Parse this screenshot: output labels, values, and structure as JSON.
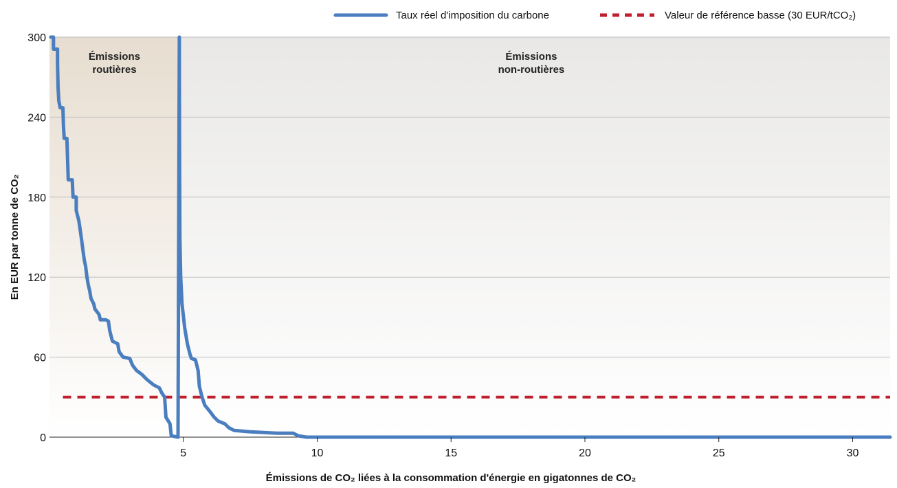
{
  "chart_data": {
    "type": "line",
    "xlabel": "Émissions de CO₂ liées à la consommation d'énergie en gigatonnes de CO₂",
    "ylabel": "En EUR par tonne de CO₂",
    "xlim": [
      0,
      31.4
    ],
    "ylim": [
      0,
      300
    ],
    "x_ticks": [
      5,
      10,
      15,
      20,
      25,
      30
    ],
    "y_ticks": [
      0,
      60,
      120,
      180,
      240,
      300
    ],
    "grid": "horizontal",
    "legend_position": "top-right",
    "regions": [
      {
        "label_line1": "Émissions",
        "label_line2": "routières",
        "x_start": 0,
        "x_end": 4.85
      },
      {
        "label_line1": "Émissions",
        "label_line2": "non-routières",
        "x_start": 4.85,
        "x_end": 31.4
      }
    ],
    "series": [
      {
        "name": "Taux réel d'imposition du carbone",
        "color": "#4a7ebf",
        "style": "solid",
        "points": [
          [
            0.05,
            300
          ],
          [
            0.15,
            300
          ],
          [
            0.15,
            291
          ],
          [
            0.3,
            291
          ],
          [
            0.3,
            280
          ],
          [
            0.32,
            262
          ],
          [
            0.35,
            252
          ],
          [
            0.4,
            247
          ],
          [
            0.5,
            247
          ],
          [
            0.52,
            234
          ],
          [
            0.55,
            224
          ],
          [
            0.65,
            224
          ],
          [
            0.68,
            206
          ],
          [
            0.7,
            193
          ],
          [
            0.85,
            193
          ],
          [
            0.88,
            180
          ],
          [
            1.0,
            180
          ],
          [
            1.0,
            170
          ],
          [
            1.1,
            162
          ],
          [
            1.15,
            155
          ],
          [
            1.2,
            148
          ],
          [
            1.25,
            140
          ],
          [
            1.3,
            133
          ],
          [
            1.35,
            128
          ],
          [
            1.4,
            120
          ],
          [
            1.45,
            114
          ],
          [
            1.5,
            110
          ],
          [
            1.55,
            104
          ],
          [
            1.65,
            100
          ],
          [
            1.7,
            96
          ],
          [
            1.85,
            92
          ],
          [
            1.9,
            88
          ],
          [
            2.1,
            88
          ],
          [
            2.2,
            87
          ],
          [
            2.25,
            80
          ],
          [
            2.35,
            72
          ],
          [
            2.55,
            70
          ],
          [
            2.6,
            64
          ],
          [
            2.75,
            60
          ],
          [
            3.0,
            59
          ],
          [
            3.1,
            54
          ],
          [
            3.25,
            50
          ],
          [
            3.45,
            47
          ],
          [
            3.65,
            43
          ],
          [
            3.9,
            39
          ],
          [
            4.1,
            37
          ],
          [
            4.2,
            33
          ],
          [
            4.3,
            30
          ],
          [
            4.35,
            15
          ],
          [
            4.5,
            10
          ],
          [
            4.55,
            1
          ],
          [
            4.8,
            0
          ],
          [
            4.85,
            300
          ],
          [
            4.85,
            270
          ],
          [
            4.86,
            200
          ],
          [
            4.87,
            150
          ],
          [
            4.9,
            120
          ],
          [
            4.95,
            100
          ],
          [
            5.05,
            82
          ],
          [
            5.15,
            70
          ],
          [
            5.25,
            62
          ],
          [
            5.3,
            59
          ],
          [
            5.45,
            58
          ],
          [
            5.55,
            50
          ],
          [
            5.6,
            38
          ],
          [
            5.7,
            30
          ],
          [
            5.8,
            24
          ],
          [
            6.0,
            19
          ],
          [
            6.15,
            15
          ],
          [
            6.3,
            12
          ],
          [
            6.55,
            10
          ],
          [
            6.7,
            7
          ],
          [
            6.9,
            5
          ],
          [
            7.5,
            4
          ],
          [
            8.5,
            3
          ],
          [
            9.1,
            3
          ],
          [
            9.3,
            1
          ],
          [
            9.6,
            0
          ],
          [
            31.4,
            0
          ]
        ]
      },
      {
        "name": "Valeur de référence basse (30 EUR/tCO₂)",
        "color": "#c0202e",
        "style": "dashed",
        "points": [
          [
            0.5,
            30
          ],
          [
            31.4,
            30
          ]
        ]
      }
    ]
  }
}
